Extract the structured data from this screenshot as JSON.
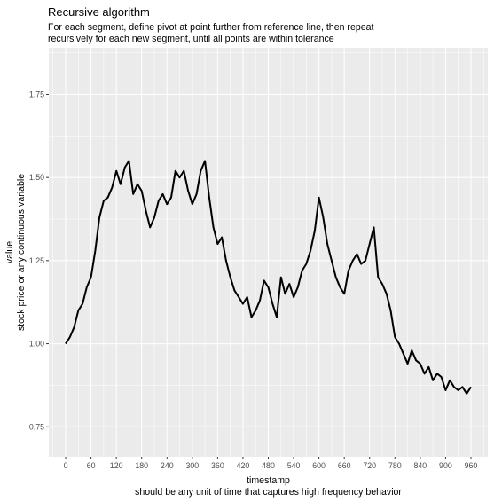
{
  "chart_data": {
    "type": "line",
    "title": "Recursive algorithm",
    "subtitle": [
      "For each segment, define pivot at point further from reference line, then repeat",
      "recursively for each new segment, until all points are within tolerance"
    ],
    "xlabel": [
      "timestamp",
      "should be any unit of time that captures high frequency behavior"
    ],
    "ylabel": [
      "value",
      "stock price or any continuous variable"
    ],
    "xlim": [
      -40,
      1000
    ],
    "ylim": [
      0.66,
      1.89
    ],
    "x_ticks": [
      0,
      60,
      120,
      180,
      240,
      300,
      360,
      420,
      480,
      540,
      600,
      660,
      720,
      780,
      840,
      900,
      960
    ],
    "y_ticks": [
      0.75,
      1.0,
      1.25,
      1.5,
      1.75
    ],
    "y_tick_labels": [
      "0.75",
      "1.00",
      "1.25",
      "1.50",
      "1.75"
    ],
    "grid": true,
    "background": "#ebebeb",
    "gridline_color": "#ffffff",
    "line_color": "#000000",
    "series": [
      {
        "name": "",
        "x": [
          0,
          10,
          20,
          30,
          40,
          50,
          60,
          70,
          80,
          90,
          100,
          110,
          120,
          130,
          140,
          150,
          160,
          170,
          180,
          190,
          200,
          210,
          220,
          230,
          240,
          250,
          260,
          270,
          280,
          290,
          300,
          310,
          320,
          330,
          340,
          350,
          360,
          370,
          380,
          390,
          400,
          410,
          420,
          430,
          440,
          450,
          460,
          470,
          480,
          490,
          500,
          510,
          520,
          530,
          540,
          550,
          560,
          570,
          580,
          590,
          600,
          610,
          620,
          630,
          640,
          650,
          660,
          670,
          680,
          690,
          700,
          710,
          720,
          730,
          740,
          750,
          760,
          770,
          780,
          790,
          800,
          810,
          820,
          830,
          840,
          850,
          860,
          870,
          880,
          890,
          900,
          910,
          920,
          930,
          940,
          950,
          960
        ],
        "y": [
          1.0,
          1.02,
          1.05,
          1.1,
          1.12,
          1.17,
          1.2,
          1.28,
          1.38,
          1.43,
          1.44,
          1.47,
          1.52,
          1.48,
          1.53,
          1.55,
          1.45,
          1.48,
          1.46,
          1.4,
          1.35,
          1.38,
          1.43,
          1.45,
          1.42,
          1.44,
          1.52,
          1.5,
          1.52,
          1.46,
          1.42,
          1.45,
          1.52,
          1.55,
          1.44,
          1.35,
          1.3,
          1.32,
          1.25,
          1.2,
          1.16,
          1.14,
          1.12,
          1.14,
          1.08,
          1.1,
          1.13,
          1.19,
          1.17,
          1.12,
          1.08,
          1.2,
          1.15,
          1.18,
          1.14,
          1.17,
          1.22,
          1.24,
          1.28,
          1.34,
          1.44,
          1.38,
          1.3,
          1.25,
          1.2,
          1.17,
          1.15,
          1.22,
          1.25,
          1.27,
          1.24,
          1.25,
          1.3,
          1.35,
          1.2,
          1.18,
          1.15,
          1.1,
          1.02,
          1.0,
          0.97,
          0.94,
          0.98,
          0.95,
          0.94,
          0.91,
          0.93,
          0.89,
          0.91,
          0.9,
          0.86,
          0.89,
          0.87,
          0.86,
          0.87,
          0.85,
          0.87
        ]
      }
    ]
  }
}
